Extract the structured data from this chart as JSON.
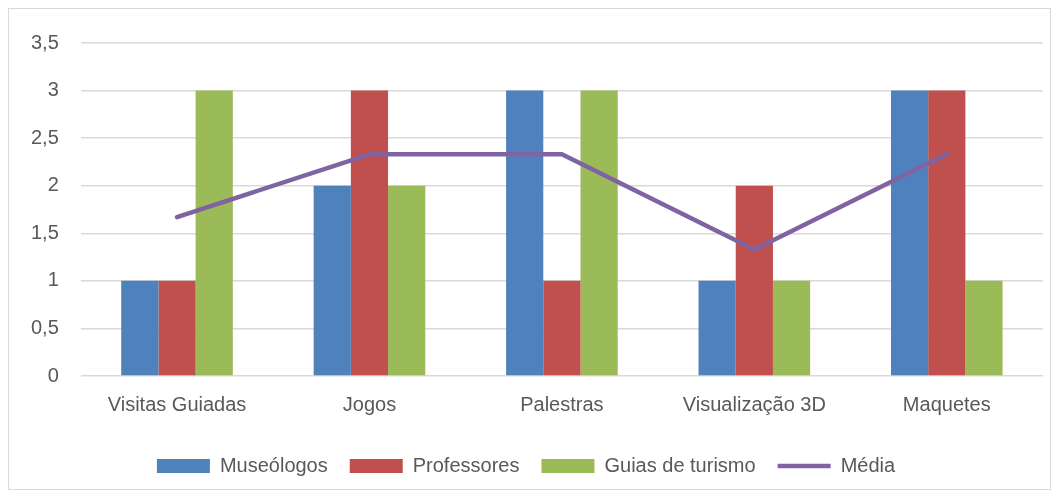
{
  "chart_data": {
    "type": "bar",
    "categories": [
      "Visitas Guiadas",
      "Jogos",
      "Palestras",
      "Visualização 3D",
      "Maquetes"
    ],
    "series": [
      {
        "name": "Museólogos",
        "color": "#4f81bd",
        "values": [
          1,
          2,
          3,
          1,
          3
        ]
      },
      {
        "name": "Professores",
        "color": "#c0504d",
        "values": [
          1,
          3,
          1,
          2,
          3
        ]
      },
      {
        "name": "Guias de turismo",
        "color": "#9bbb59",
        "values": [
          3,
          2,
          3,
          1,
          1
        ]
      },
      {
        "name": "Média",
        "type": "line",
        "color": "#8064a2",
        "values": [
          1.67,
          2.33,
          2.33,
          1.33,
          2.33
        ],
        "marker": "none",
        "line_style": "solid"
      }
    ],
    "ylim": [
      0,
      3.5
    ],
    "yticks": [
      0,
      {
        "value": 0.5,
        "label": "0,5"
      },
      1,
      {
        "value": 1.5,
        "label": "1,5"
      },
      2,
      {
        "value": 2.5,
        "label": "2,5"
      },
      3,
      {
        "value": 3.5,
        "label": "3,5"
      }
    ],
    "grid": "y",
    "legend": "bottom"
  }
}
